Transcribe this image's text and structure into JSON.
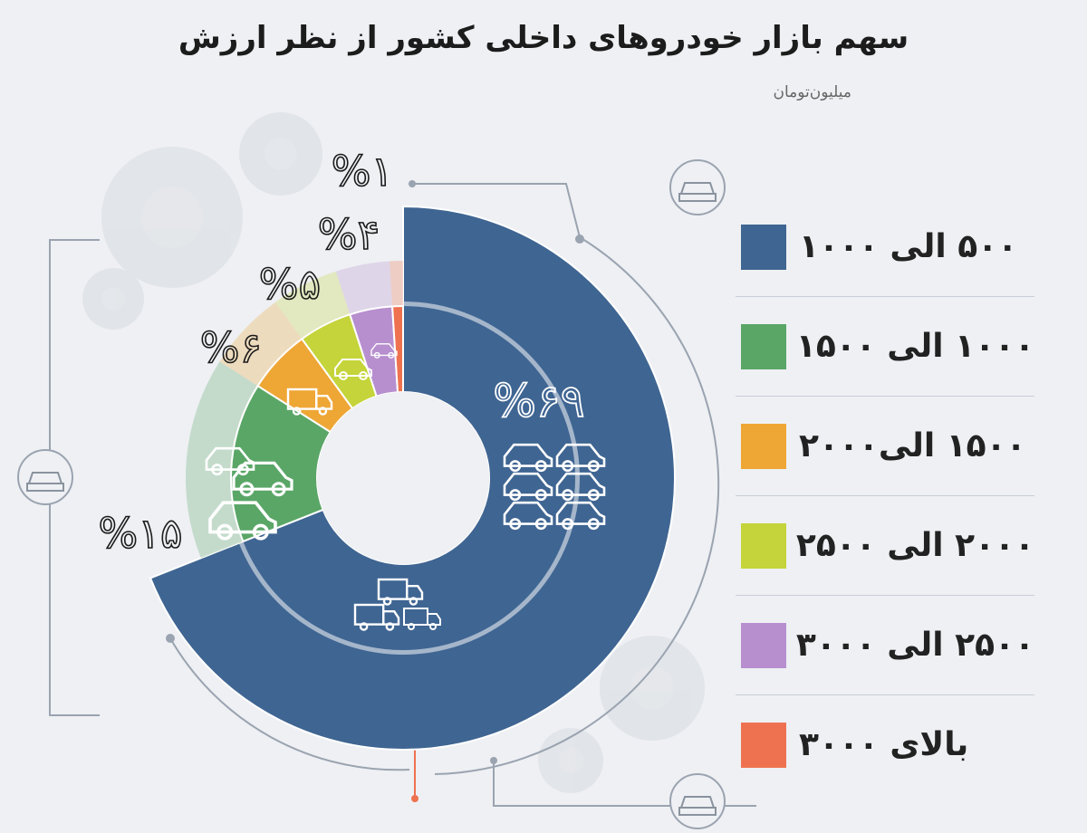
{
  "header": {
    "title": "سهم بازار خودروهای داخلی کشور از نظر ارزش",
    "subtitle": "میلیون‌تومان"
  },
  "colors": {
    "background": "#eef0f3",
    "guide": "#9aa3b0"
  },
  "icons": [
    "car-icon",
    "truck-icon",
    "gear-icon",
    "suv-icon"
  ],
  "chart_data": {
    "type": "pie",
    "variant": "donut",
    "title": "سهم بازار خودروهای داخلی کشور از نظر ارزش",
    "unit": "میلیون‌تومان",
    "legend_position": "right",
    "categories": [
      "۵۰۰ الی ۱۰۰۰",
      "۱۰۰۰ الی ۱۵۰۰",
      "۱۵۰۰ الی۲۰۰۰",
      "۲۰۰۰ الی ۲۵۰۰",
      "۲۵۰۰ الی ۳۰۰۰",
      "بالای ۳۰۰۰"
    ],
    "values": [
      69,
      15,
      6,
      5,
      4,
      1
    ],
    "value_labels": [
      "%۶۹",
      "%۱۵",
      "%۶",
      "%۵",
      "%۴",
      "%۱"
    ],
    "colors": [
      "#3f6592",
      "#5aa667",
      "#eea635",
      "#c4d43a",
      "#b78fcf",
      "#ef7250"
    ]
  }
}
